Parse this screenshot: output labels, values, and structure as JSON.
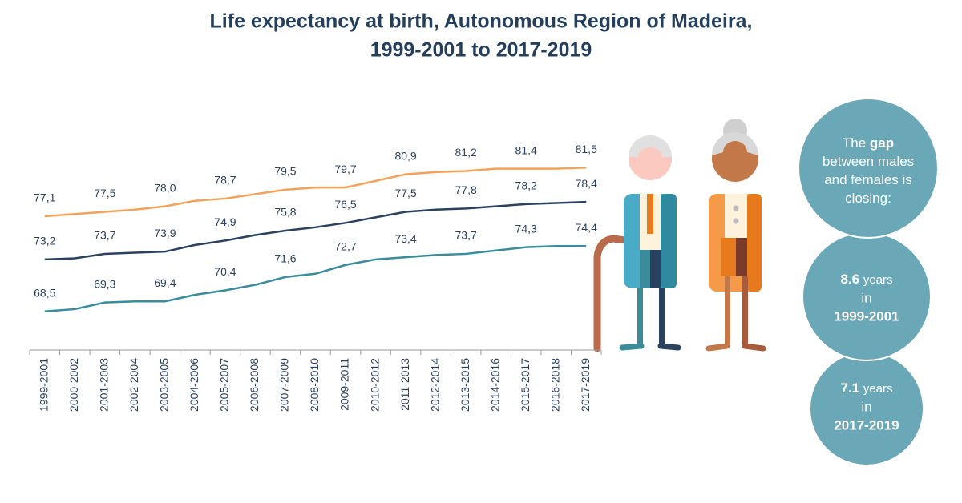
{
  "chart_data": {
    "type": "line",
    "title": "Life expectancy at birth, Autonomous Region of Madeira,",
    "subtitle": "1999-2001 to 2017-2019",
    "categories": [
      "1999-2001",
      "2000-2002",
      "2001-2003",
      "2002-2004",
      "2003-2005",
      "2004-2006",
      "2005-2007",
      "2006-2008",
      "2007-2009",
      "2008-2010",
      "2009-2011",
      "2010-2012",
      "2011-2013",
      "2012-2014",
      "2013-2015",
      "2014-2016",
      "2015-2017",
      "2016-2018",
      "2017-2019"
    ],
    "series": [
      {
        "color": "#f4a25a",
        "values": [
          77.1,
          77.3,
          77.5,
          77.7,
          78.0,
          78.5,
          78.7,
          79.1,
          79.5,
          79.7,
          79.7,
          80.3,
          80.9,
          81.1,
          81.2,
          81.4,
          81.4,
          81.4,
          81.5
        ],
        "value_labels": [
          "77,1",
          null,
          "77,5",
          null,
          "78,0",
          null,
          "78,7",
          null,
          "79,5",
          null,
          "79,7",
          null,
          "80,9",
          null,
          "81,2",
          null,
          "81,4",
          null,
          "81,5"
        ]
      },
      {
        "color": "#2b4160",
        "values": [
          73.2,
          73.3,
          73.7,
          73.8,
          73.9,
          74.5,
          74.9,
          75.4,
          75.8,
          76.1,
          76.5,
          77.0,
          77.5,
          77.7,
          77.8,
          78.0,
          78.2,
          78.3,
          78.4
        ],
        "value_labels": [
          "73,2",
          null,
          "73,7",
          null,
          "73,9",
          null,
          "74,9",
          null,
          "75,8",
          null,
          "76,5",
          null,
          "77,5",
          null,
          "77,8",
          null,
          "78,2",
          null,
          "78,4"
        ]
      },
      {
        "color": "#3a8c9c",
        "values": [
          68.5,
          68.7,
          69.3,
          69.4,
          69.4,
          70.0,
          70.4,
          70.9,
          71.6,
          71.9,
          72.7,
          73.2,
          73.4,
          73.6,
          73.7,
          74.0,
          74.3,
          74.4,
          74.4
        ],
        "value_labels": [
          "68,5",
          null,
          "69,3",
          null,
          "69,4",
          null,
          "70,4",
          null,
          "71,6",
          null,
          "72,7",
          null,
          "73,4",
          null,
          "73,7",
          null,
          "74,3",
          null,
          "74,4"
        ]
      }
    ],
    "ylim": [
      65,
      85
    ],
    "note": {
      "before": "The",
      "bold": "gap",
      "after": "between males and females is closing:"
    },
    "gaps": [
      {
        "value": 8.6,
        "unit": "years",
        "word": "in",
        "period": "1999-2001"
      },
      {
        "value": 7.1,
        "unit": "years",
        "word": "in",
        "period": "2017-2019"
      }
    ]
  }
}
